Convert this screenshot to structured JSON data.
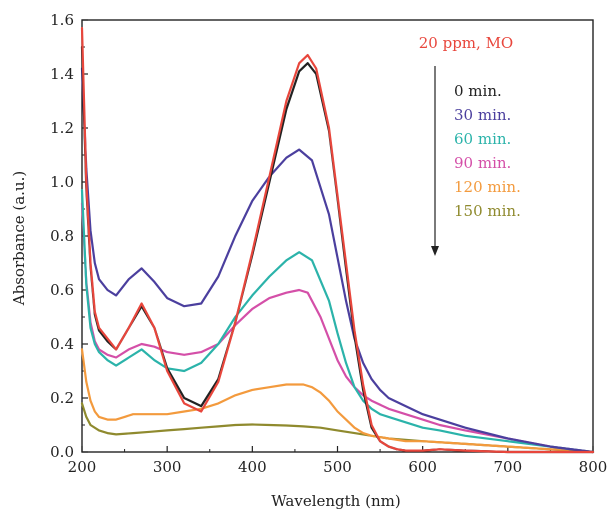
{
  "chart_data": {
    "type": "line",
    "title": "",
    "annotation": "20 ppm, MO",
    "xlabel": "Wavelength (nm)",
    "ylabel": "Absorbance (a.u.)",
    "xlim": [
      200,
      800
    ],
    "ylim": [
      0,
      1.6
    ],
    "x_ticks": [
      200,
      300,
      400,
      500,
      600,
      700,
      800
    ],
    "y_ticks": [
      0.0,
      0.2,
      0.4,
      0.6,
      0.8,
      1.0,
      1.2,
      1.4,
      1.6
    ],
    "x_tick_labels": [
      "200",
      "300",
      "400",
      "500",
      "600",
      "700",
      "800"
    ],
    "y_tick_labels": [
      "0.0",
      "0.2",
      "0.4",
      "0.6",
      "0.8",
      "1.0",
      "1.2",
      "1.4",
      "1.6"
    ],
    "grid": false,
    "legend_position": "top-right",
    "arrow": {
      "direction": "down"
    },
    "series": [
      {
        "name": "20 ppm, MO",
        "color": "#e8463c",
        "x": [
          200,
          205,
          210,
          215,
          220,
          230,
          240,
          255,
          270,
          285,
          300,
          320,
          340,
          360,
          380,
          400,
          420,
          440,
          455,
          465,
          475,
          490,
          500,
          510,
          520,
          530,
          540,
          550,
          560,
          570,
          580,
          600,
          620,
          650,
          700,
          750,
          800
        ],
        "y": [
          1.57,
          1.0,
          0.7,
          0.52,
          0.46,
          0.42,
          0.38,
          0.46,
          0.55,
          0.46,
          0.3,
          0.18,
          0.15,
          0.26,
          0.48,
          0.74,
          1.02,
          1.3,
          1.44,
          1.47,
          1.42,
          1.2,
          0.95,
          0.7,
          0.45,
          0.25,
          0.1,
          0.04,
          0.02,
          0.01,
          0.005,
          0.005,
          0.01,
          0.005,
          0.0,
          0.0,
          0.0
        ]
      },
      {
        "name": "0 min.",
        "color": "#222222",
        "x": [
          200,
          205,
          210,
          215,
          220,
          230,
          240,
          255,
          270,
          285,
          300,
          320,
          340,
          360,
          380,
          400,
          420,
          440,
          455,
          465,
          475,
          490,
          500,
          510,
          520,
          530,
          540,
          550,
          560,
          570,
          580,
          600,
          620,
          650,
          700,
          750,
          800
        ],
        "y": [
          1.5,
          0.98,
          0.69,
          0.51,
          0.45,
          0.41,
          0.38,
          0.46,
          0.54,
          0.46,
          0.31,
          0.2,
          0.17,
          0.27,
          0.48,
          0.73,
          1.0,
          1.27,
          1.41,
          1.44,
          1.4,
          1.19,
          0.94,
          0.68,
          0.43,
          0.23,
          0.09,
          0.04,
          0.02,
          0.01,
          0.005,
          0.005,
          0.01,
          0.005,
          0.0,
          0.0,
          0.0
        ]
      },
      {
        "name": "30 min.",
        "color": "#4b3f9e",
        "x": [
          200,
          205,
          210,
          215,
          220,
          230,
          240,
          255,
          270,
          285,
          300,
          320,
          340,
          360,
          380,
          400,
          420,
          440,
          455,
          470,
          490,
          500,
          510,
          520,
          530,
          540,
          550,
          560,
          580,
          600,
          620,
          650,
          700,
          750,
          800
        ],
        "y": [
          1.42,
          1.05,
          0.82,
          0.7,
          0.64,
          0.6,
          0.58,
          0.64,
          0.68,
          0.63,
          0.57,
          0.54,
          0.55,
          0.65,
          0.8,
          0.93,
          1.02,
          1.09,
          1.12,
          1.08,
          0.88,
          0.72,
          0.56,
          0.42,
          0.33,
          0.27,
          0.23,
          0.2,
          0.17,
          0.14,
          0.12,
          0.09,
          0.05,
          0.02,
          0.0
        ]
      },
      {
        "name": "60 min.",
        "color": "#2bb3aa",
        "x": [
          200,
          205,
          210,
          215,
          220,
          230,
          240,
          255,
          270,
          285,
          300,
          320,
          340,
          360,
          380,
          400,
          420,
          440,
          455,
          470,
          490,
          500,
          510,
          520,
          530,
          540,
          550,
          560,
          580,
          600,
          620,
          650,
          700,
          750,
          800
        ],
        "y": [
          0.97,
          0.62,
          0.46,
          0.4,
          0.37,
          0.34,
          0.32,
          0.35,
          0.38,
          0.34,
          0.31,
          0.3,
          0.33,
          0.4,
          0.5,
          0.58,
          0.65,
          0.71,
          0.74,
          0.71,
          0.56,
          0.44,
          0.33,
          0.24,
          0.19,
          0.16,
          0.14,
          0.13,
          0.11,
          0.09,
          0.08,
          0.06,
          0.04,
          0.02,
          0.0
        ]
      },
      {
        "name": "90 min.",
        "color": "#d44fa8",
        "x": [
          200,
          205,
          210,
          215,
          220,
          230,
          240,
          255,
          270,
          285,
          300,
          320,
          340,
          360,
          380,
          400,
          420,
          440,
          455,
          465,
          480,
          490,
          500,
          510,
          520,
          530,
          540,
          560,
          580,
          600,
          620,
          650,
          700,
          750,
          800
        ],
        "y": [
          0.92,
          0.63,
          0.48,
          0.41,
          0.38,
          0.36,
          0.35,
          0.38,
          0.4,
          0.39,
          0.37,
          0.36,
          0.37,
          0.4,
          0.47,
          0.53,
          0.57,
          0.59,
          0.6,
          0.59,
          0.5,
          0.42,
          0.34,
          0.28,
          0.24,
          0.21,
          0.19,
          0.16,
          0.14,
          0.12,
          0.1,
          0.08,
          0.05,
          0.02,
          0.0
        ]
      },
      {
        "name": "120 min.",
        "color": "#f39a3d",
        "x": [
          200,
          205,
          210,
          215,
          220,
          230,
          240,
          250,
          260,
          270,
          280,
          300,
          320,
          340,
          360,
          380,
          400,
          420,
          440,
          460,
          470,
          480,
          490,
          500,
          510,
          520,
          530,
          540,
          560,
          580,
          600,
          650,
          700,
          750,
          800
        ],
        "y": [
          0.38,
          0.26,
          0.19,
          0.15,
          0.13,
          0.12,
          0.12,
          0.13,
          0.14,
          0.14,
          0.14,
          0.14,
          0.15,
          0.16,
          0.18,
          0.21,
          0.23,
          0.24,
          0.25,
          0.25,
          0.24,
          0.22,
          0.19,
          0.15,
          0.12,
          0.09,
          0.07,
          0.06,
          0.05,
          0.04,
          0.04,
          0.03,
          0.02,
          0.01,
          0.0
        ]
      },
      {
        "name": "150 min.",
        "color": "#8f8a2e",
        "x": [
          200,
          205,
          210,
          220,
          230,
          240,
          260,
          280,
          300,
          320,
          340,
          360,
          380,
          400,
          420,
          440,
          460,
          480,
          500,
          520,
          540,
          560,
          580,
          600,
          650,
          700,
          750,
          800
        ],
        "y": [
          0.18,
          0.13,
          0.1,
          0.08,
          0.07,
          0.065,
          0.07,
          0.075,
          0.08,
          0.085,
          0.09,
          0.095,
          0.1,
          0.102,
          0.1,
          0.098,
          0.095,
          0.09,
          0.08,
          0.07,
          0.06,
          0.05,
          0.045,
          0.04,
          0.03,
          0.02,
          0.01,
          0.0
        ]
      }
    ]
  }
}
